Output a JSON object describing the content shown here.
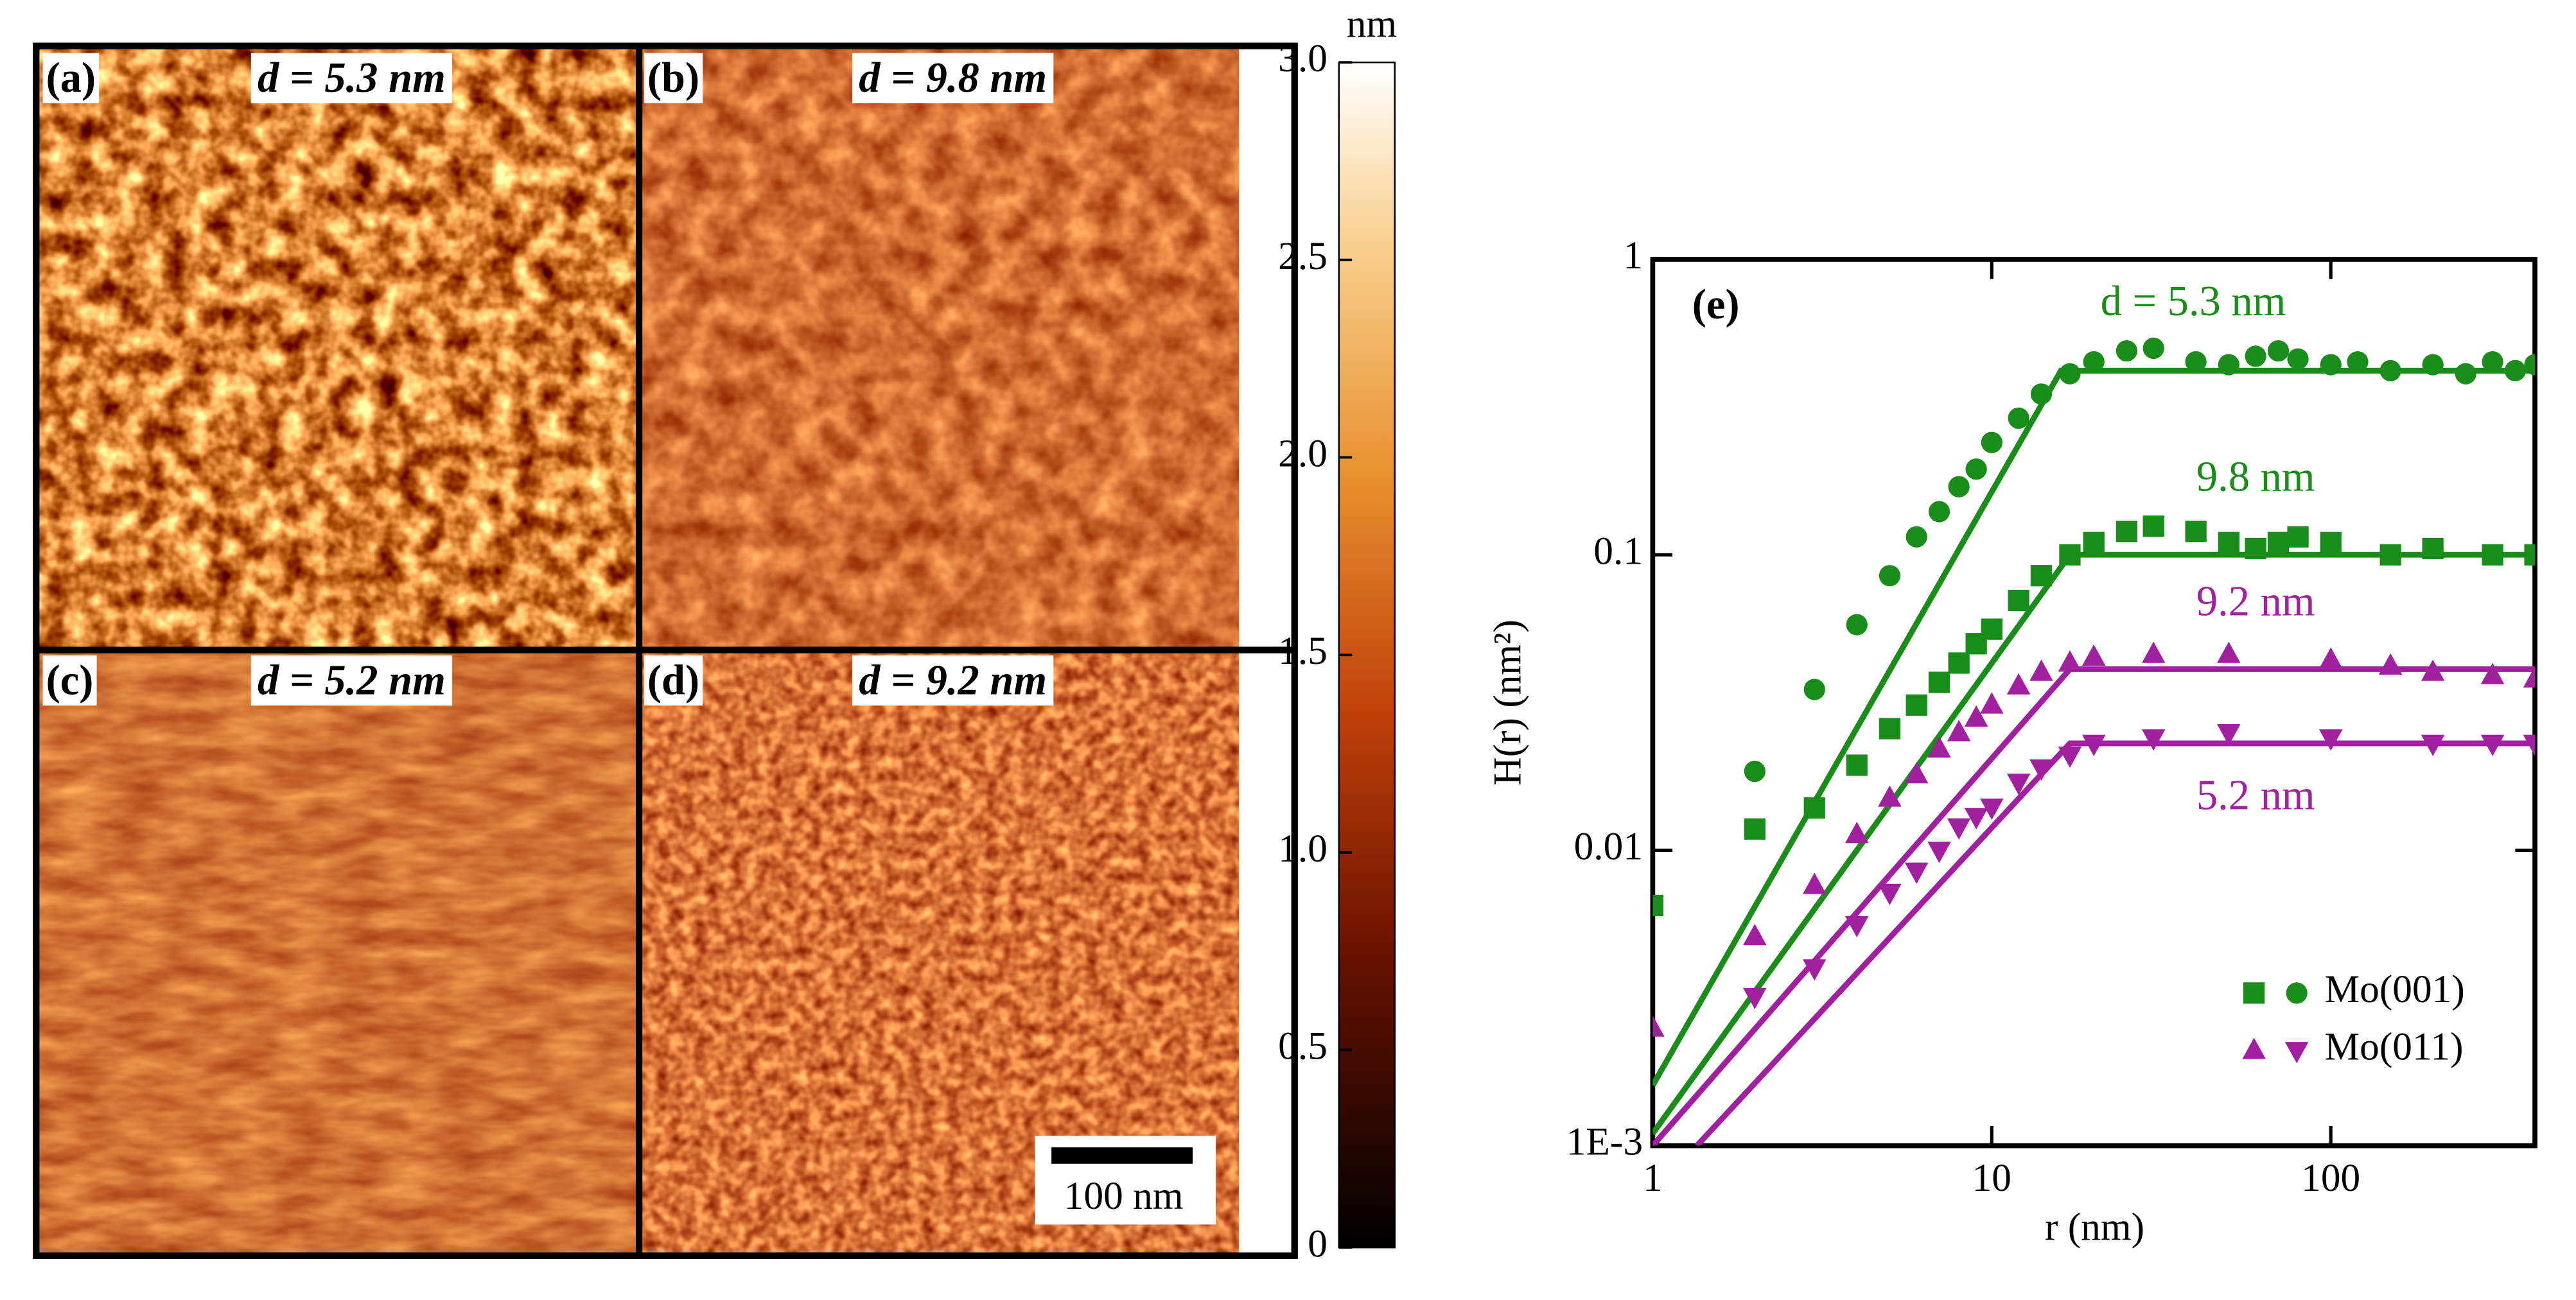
{
  "chart_data": [
    {
      "type": "heatmap",
      "zlabel": "nm",
      "zlim": [
        0,
        3
      ],
      "zticks": [
        0,
        0.5,
        {
          "value": 1,
          "label": "1.0"
        },
        1.5,
        {
          "value": 2,
          "label": "2.0"
        },
        2.5,
        {
          "value": 3,
          "label": "3.0"
        }
      ],
      "panels": [
        {
          "label": "(a)",
          "title": "d = 5.3 nm"
        },
        {
          "label": "(b)",
          "title": "d = 9.8 nm"
        },
        {
          "label": "(c)",
          "title": "d = 5.2 nm"
        },
        {
          "label": "(d)",
          "title": "d = 9.2 nm"
        }
      ],
      "scale_bar": "100 nm"
    },
    {
      "type": "scatter",
      "panel_label": "(e)",
      "xlabel": "r (nm)",
      "ylabel": "H(r) (nm²)",
      "xscale": "log",
      "yscale": "log",
      "xlim": [
        1,
        400
      ],
      "ylim": [
        0.001,
        1
      ],
      "xticks": [
        1,
        10,
        100
      ],
      "yticks": [
        {
          "value": 0.001,
          "label": "1E-3"
        },
        0.01,
        0.1,
        1
      ],
      "legend_position": "lower right",
      "legend": [
        {
          "label": "Mo(001)",
          "color": "#1a8c1a",
          "markers": [
            "square",
            "circle"
          ]
        },
        {
          "label": "Mo(011)",
          "color": "#a020a0",
          "markers": [
            "triangle-up",
            "triangle-down"
          ]
        }
      ],
      "series": [
        {
          "name": "d = 5.3 nm",
          "color": "#1a8c1a",
          "marker": "circle",
          "x": [
            2,
            3,
            4,
            5,
            6,
            7,
            8,
            9,
            10,
            12,
            14,
            17,
            20,
            25,
            30,
            40,
            50,
            60,
            70,
            80,
            100,
            120,
            150,
            200,
            250,
            300,
            350,
            400
          ],
          "values": [
            0.0185,
            0.035,
            0.058,
            0.085,
            0.115,
            0.14,
            0.17,
            0.195,
            0.24,
            0.29,
            0.35,
            0.41,
            0.45,
            0.49,
            0.5,
            0.45,
            0.44,
            0.47,
            0.49,
            0.46,
            0.44,
            0.45,
            0.42,
            0.44,
            0.41,
            0.45,
            0.42,
            0.44
          ],
          "fit_x": [
            1,
            16,
            400
          ],
          "fit_values": [
            0.0016,
            0.42,
            0.42
          ]
        },
        {
          "name": "9.8 nm",
          "color": "#1a8c1a",
          "marker": "square",
          "x": [
            1,
            2,
            3,
            4,
            5,
            6,
            7,
            8,
            9,
            10,
            12,
            14,
            17,
            20,
            25,
            30,
            40,
            50,
            60,
            70,
            80,
            100,
            150,
            200,
            300,
            400
          ],
          "values": [
            0.0065,
            0.0118,
            0.0139,
            0.0194,
            0.0258,
            0.031,
            0.037,
            0.043,
            0.05,
            0.056,
            0.07,
            0.085,
            0.1,
            0.11,
            0.12,
            0.125,
            0.12,
            0.11,
            0.105,
            0.11,
            0.115,
            0.11,
            0.1,
            0.105,
            0.1,
            0.1
          ],
          "fit_x": [
            1,
            17,
            400
          ],
          "fit_values": [
            0.0011,
            0.1,
            0.1
          ]
        },
        {
          "name": "9.2 nm",
          "color": "#a020a0",
          "marker": "triangle-up",
          "x": [
            1,
            2,
            3,
            4,
            5,
            6,
            7,
            8,
            9,
            10,
            12,
            14,
            17,
            20,
            30,
            50,
            100,
            150,
            200,
            300,
            400
          ],
          "values": [
            0.0025,
            0.0051,
            0.0076,
            0.0113,
            0.015,
            0.018,
            0.022,
            0.025,
            0.028,
            0.031,
            0.036,
            0.04,
            0.043,
            0.045,
            0.046,
            0.046,
            0.044,
            0.042,
            0.04,
            0.039,
            0.038
          ],
          "fit_x": [
            1,
            17,
            400
          ],
          "fit_values": [
            0.001,
            0.041,
            0.041
          ]
        },
        {
          "name": "5.2 nm",
          "color": "#a020a0",
          "marker": "triangle-down",
          "x": [
            2,
            3,
            4,
            5,
            6,
            7,
            8,
            9,
            10,
            12,
            14,
            17,
            20,
            30,
            50,
            100,
            200,
            300,
            400
          ],
          "values": [
            0.0032,
            0.004,
            0.0056,
            0.0072,
            0.0085,
            0.01,
            0.012,
            0.013,
            0.014,
            0.017,
            0.019,
            0.021,
            0.023,
            0.024,
            0.025,
            0.024,
            0.023,
            0.023,
            0.023
          ],
          "fit_x": [
            1.35,
            17,
            400
          ],
          "fit_values": [
            0.001,
            0.023,
            0.023
          ]
        }
      ]
    }
  ]
}
